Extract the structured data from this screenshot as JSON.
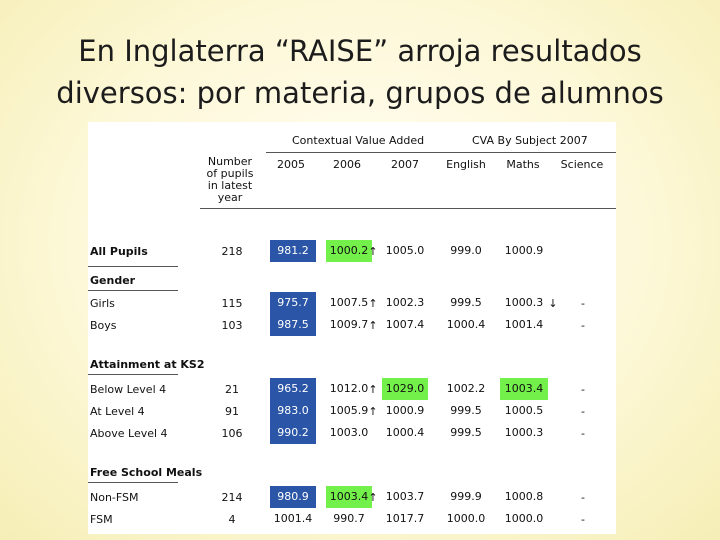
{
  "slide": {
    "title_line1": "En Inglaterra “RAISE” arroja resultados",
    "title_line2": "diversos: por materia, grupos de alumnos"
  },
  "table": {
    "section_cva": "Contextual Value Added",
    "section_subject": "CVA By Subject 2007",
    "col_pupils": "Number of pupils in latest year",
    "col_pupils_lines": [
      "Number",
      "of pupils",
      "in latest",
      "year"
    ],
    "col_2005": "2005",
    "col_2006": "2006",
    "col_2007": "2007",
    "col_english": "English",
    "col_maths": "Maths",
    "col_science": "Science",
    "rows": [
      {
        "type": "group",
        "label": "All Pupils"
      },
      {
        "type": "row",
        "label": "All Pupils",
        "pupils": "218",
        "v2005": "981.2",
        "c2005": "blue",
        "v2006": "1000.2",
        "c2006": "green",
        "a2006": "↑",
        "v2007": "1005.0",
        "c2007": "plain",
        "english": "999.0",
        "cEnglish": "plain",
        "maths": "1000.9",
        "cMaths": "plain",
        "mArrow": "",
        "science": ""
      },
      {
        "type": "group",
        "label": "Gender"
      },
      {
        "type": "row",
        "label": "Girls",
        "pupils": "115",
        "v2005": "975.7",
        "c2005": "blue",
        "v2006": "1007.5",
        "c2006": "plain",
        "a2006": "↑",
        "v2007": "1002.3",
        "c2007": "plain",
        "english": "999.5",
        "cEnglish": "plain",
        "maths": "1000.3",
        "cMaths": "plain",
        "mArrow": "↓",
        "science": "-"
      },
      {
        "type": "row",
        "label": "Boys",
        "pupils": "103",
        "v2005": "987.5",
        "c2005": "blue",
        "v2006": "1009.7",
        "c2006": "plain",
        "a2006": "↑",
        "v2007": "1007.4",
        "c2007": "plain",
        "english": "1000.4",
        "cEnglish": "plain",
        "maths": "1001.4",
        "cMaths": "plain",
        "mArrow": "",
        "science": "-"
      },
      {
        "type": "group",
        "label": "Attainment at KS2"
      },
      {
        "type": "row",
        "label": "Below Level 4",
        "pupils": "21",
        "v2005": "965.2",
        "c2005": "blue",
        "v2006": "1012.0",
        "c2006": "plain",
        "a2006": "↑",
        "v2007": "1029.0",
        "c2007": "green",
        "english": "1002.2",
        "cEnglish": "plain",
        "maths": "1003.4",
        "cMaths": "green",
        "mArrow": "",
        "science": "-"
      },
      {
        "type": "row",
        "label": "At Level 4",
        "pupils": "91",
        "v2005": "983.0",
        "c2005": "blue",
        "v2006": "1005.9",
        "c2006": "plain",
        "a2006": "↑",
        "v2007": "1000.9",
        "c2007": "plain",
        "english": "999.5",
        "cEnglish": "plain",
        "maths": "1000.5",
        "cMaths": "plain",
        "mArrow": "",
        "science": "-"
      },
      {
        "type": "row",
        "label": "Above Level 4",
        "pupils": "106",
        "v2005": "990.2",
        "c2005": "blue",
        "v2006": "1003.0",
        "c2006": "plain",
        "a2006": "",
        "v2007": "1000.4",
        "c2007": "plain",
        "english": "999.5",
        "cEnglish": "plain",
        "maths": "1000.3",
        "cMaths": "plain",
        "mArrow": "",
        "science": "-"
      },
      {
        "type": "group",
        "label": "Free School Meals"
      },
      {
        "type": "row",
        "label": "Non-FSM",
        "pupils": "214",
        "v2005": "980.9",
        "c2005": "blue",
        "v2006": "1003.4",
        "c2006": "green",
        "a2006": "↑",
        "v2007": "1003.7",
        "c2007": "plain",
        "english": "999.9",
        "cEnglish": "plain",
        "maths": "1000.8",
        "cMaths": "plain",
        "mArrow": "",
        "science": "-"
      },
      {
        "type": "row",
        "label": "FSM",
        "pupils": "4",
        "v2005": "1001.4",
        "c2005": "plain",
        "v2006": "990.7",
        "c2006": "plain",
        "a2006": "",
        "v2007": "1017.7",
        "c2007": "plain",
        "english": "1000.0",
        "cEnglish": "plain",
        "maths": "1000.0",
        "cMaths": "plain",
        "mArrow": "",
        "science": "-"
      }
    ]
  },
  "colors": {
    "cell_blue": "#2b55a6",
    "cell_green": "#74f04a",
    "background": "#fdf8d8"
  }
}
